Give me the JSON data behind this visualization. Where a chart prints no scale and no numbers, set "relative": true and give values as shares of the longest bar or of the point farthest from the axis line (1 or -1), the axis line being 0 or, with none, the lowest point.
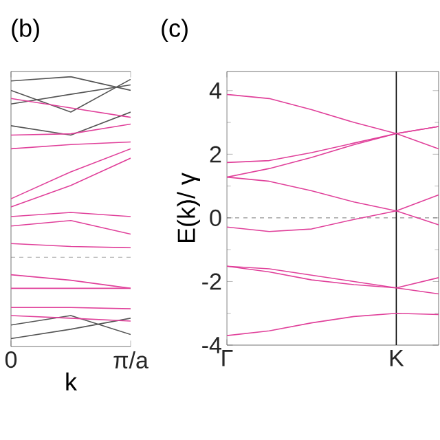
{
  "chart_data": [
    {
      "type": "line",
      "title": "(b)",
      "xlabel": "k",
      "relative": true,
      "categories": [
        "0",
        null,
        "π/a"
      ],
      "ref_lines": [
        {
          "axis": "y",
          "value": 0.311,
          "color": "#777777",
          "line_style": "dashed"
        }
      ],
      "series": [
        {
          "color": "#555555",
          "values": [
            0.984,
            1,
            0.948
          ]
        },
        {
          "color": "#555555",
          "values": [
            0.948,
            0.865,
            0.99
          ]
        },
        {
          "color": "#555555",
          "values": [
            0.896,
            0.933,
            0.969
          ]
        },
        {
          "color": "#555555",
          "values": [
            0.813,
            0.777,
            0.865
          ]
        },
        {
          "color": "#555555",
          "values": [
            0.052,
            0.088,
            0.016
          ]
        },
        {
          "color": "#555555",
          "values": [
            0,
            0.036,
            0.078
          ]
        },
        {
          "color": "#e0409a",
          "values": [
            0.917,
            0.881,
            0.845
          ]
        },
        {
          "color": "#e0409a",
          "values": [
            0.777,
            0.782,
            0.819
          ]
        },
        {
          "color": "#e0409a",
          "values": [
            0.725,
            0.741,
            0.751
          ]
        },
        {
          "color": "#e0409a",
          "values": [
            0.534,
            0.637,
            0.725
          ]
        },
        {
          "color": "#e0409a",
          "values": [
            0.503,
            0.585,
            0.689
          ]
        },
        {
          "color": "#e0409a",
          "values": [
            0.466,
            0.482,
            0.466
          ]
        },
        {
          "color": "#e0409a",
          "values": [
            0.43,
            0.451,
            0.399
          ]
        },
        {
          "color": "#e0409a",
          "values": [
            0.363,
            0.352,
            0.347
          ]
        },
        {
          "color": "#e0409a",
          "values": [
            0.244,
            0.223,
            0.192
          ]
        },
        {
          "color": "#e0409a",
          "values": [
            0.192,
            0.192,
            0.192
          ]
        },
        {
          "color": "#e0409a",
          "values": [
            0.119,
            0.119,
            0.114
          ]
        },
        {
          "color": "#e0409a",
          "values": [
            0.088,
            0.078,
            0.067
          ]
        }
      ]
    },
    {
      "type": "line",
      "title": "(c)",
      "ylabel": "E(k)/ γ",
      "categories": [
        "Γ",
        null,
        null,
        null,
        "K",
        null
      ],
      "ylim": [
        -4,
        4.6
      ],
      "yticks": [
        -4,
        -2,
        0,
        2,
        4
      ],
      "ref_lines": [
        {
          "axis": "y",
          "value": 0,
          "color": "#555555",
          "line_style": "dashed"
        },
        {
          "axis": "x",
          "value": "K",
          "color": "#000000",
          "line_style": "solid"
        }
      ],
      "series": [
        {
          "color": "#e0409a",
          "values": [
            3.88,
            3.75,
            3.4,
            3.0,
            2.65,
            2.17
          ]
        },
        {
          "color": "#e0409a",
          "values": [
            1.74,
            1.8,
            2.05,
            2.35,
            2.65,
            2.87
          ]
        },
        {
          "color": "#e0409a",
          "values": [
            1.28,
            1.55,
            1.9,
            2.3,
            2.65,
            2.87
          ]
        },
        {
          "color": "#e0409a",
          "values": [
            1.28,
            1.15,
            0.85,
            0.5,
            0.22,
            -0.22
          ]
        },
        {
          "color": "#e0409a",
          "values": [
            -0.29,
            -0.43,
            -0.35,
            -0.05,
            0.22,
            0.72
          ]
        },
        {
          "color": "#e0409a",
          "values": [
            -1.52,
            -1.6,
            -1.8,
            -2.0,
            -2.2,
            -1.88
          ]
        },
        {
          "color": "#e0409a",
          "values": [
            -1.52,
            -1.7,
            -1.95,
            -2.1,
            -2.2,
            -2.39
          ]
        },
        {
          "color": "#e0409a",
          "values": [
            -3.7,
            -3.55,
            -3.3,
            -3.1,
            -3.0,
            -3.04
          ]
        }
      ]
    }
  ]
}
